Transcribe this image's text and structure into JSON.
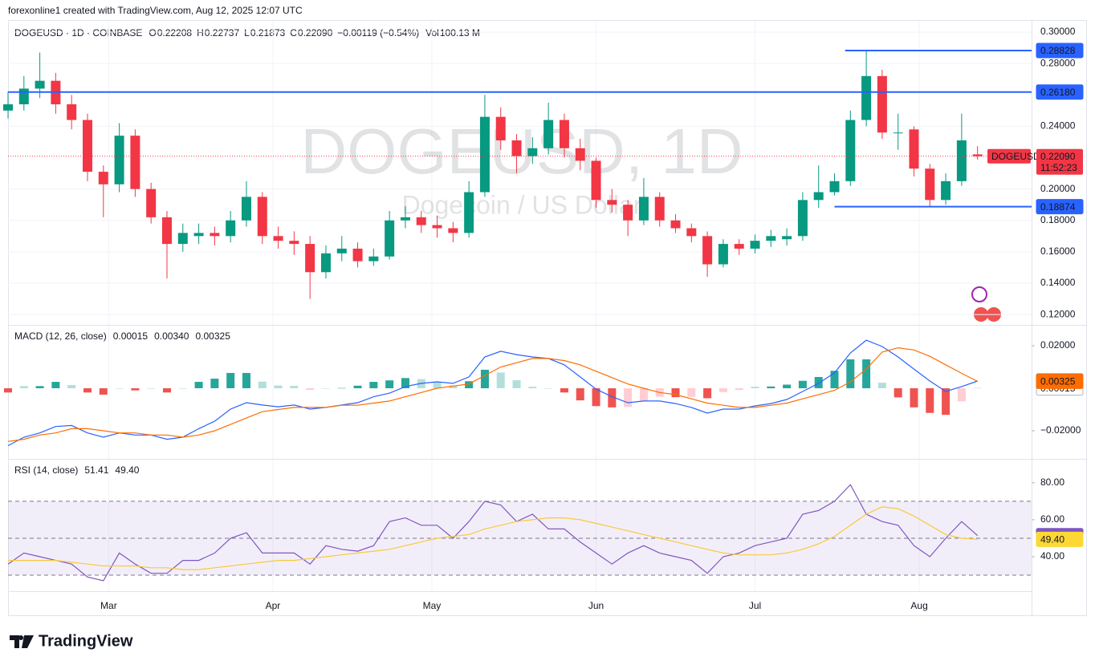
{
  "header": {
    "credit": "forexonline1 created with TradingView.com, Aug 12, 2025 12:07 UTC"
  },
  "legend": {
    "symbol": "DOGEUSD · 1D · COINBASE",
    "items": [
      {
        "label": "O",
        "value": "0.22208"
      },
      {
        "label": "H",
        "value": "0.22737"
      },
      {
        "label": "L",
        "value": "0.21873"
      },
      {
        "label": "C",
        "value": "0.22090"
      }
    ],
    "change": "−0.00119 (−0.54%)",
    "volume_label": "Vol",
    "volume": "100.13 M"
  },
  "watermark": {
    "title": "DOGEUSD, 1D",
    "subtitle": "Dogecoin / US Dollar"
  },
  "footer": {
    "brand": "TradingView"
  },
  "chart_data": [
    {
      "type": "candlestick",
      "up_color": "#089981",
      "down_color": "#f23645",
      "xlim": [
        0,
        193.2
      ],
      "xticks": [
        {
          "value": 19,
          "label": "Mar"
        },
        {
          "value": 50,
          "label": "Apr"
        },
        {
          "value": 80,
          "label": "May"
        },
        {
          "value": 111,
          "label": "Jun"
        },
        {
          "value": 141,
          "label": "Jul"
        },
        {
          "value": 172,
          "label": "Aug"
        }
      ],
      "ylim": [
        0.1134,
        0.3077
      ],
      "yticks": [
        {
          "value": 0.3,
          "label": "0.30000"
        },
        {
          "value": 0.28,
          "label": "0.28000"
        },
        {
          "value": 0.24,
          "label": "0.24000"
        },
        {
          "value": 0.2,
          "label": "0.20000"
        },
        {
          "value": 0.18,
          "label": "0.18000"
        },
        {
          "value": 0.16,
          "label": "0.16000"
        },
        {
          "value": 0.14,
          "label": "0.14000"
        },
        {
          "value": 0.12,
          "label": "0.12000"
        }
      ],
      "grid": true,
      "x": [
        0,
        3,
        6,
        9,
        12,
        15,
        18,
        21,
        24,
        27,
        30,
        33,
        36,
        39,
        42,
        45,
        48,
        51,
        54,
        57,
        60,
        63,
        66,
        69,
        72,
        75,
        78,
        81,
        84,
        87,
        90,
        93,
        96,
        99,
        102,
        105,
        108,
        111,
        114,
        117,
        120,
        123,
        126,
        129,
        132,
        135,
        138,
        141,
        144,
        147,
        150,
        153,
        156,
        159,
        162,
        165,
        168,
        171,
        174,
        177,
        180,
        183
      ],
      "open": [
        0.25,
        0.254,
        0.264,
        0.269,
        0.254,
        0.244,
        0.211,
        0.203,
        0.234,
        0.2,
        0.182,
        0.165,
        0.17,
        0.172,
        0.17,
        0.18,
        0.195,
        0.17,
        0.167,
        0.165,
        0.147,
        0.159,
        0.162,
        0.154,
        0.157,
        0.18,
        0.182,
        0.177,
        0.175,
        0.172,
        0.198,
        0.246,
        0.231,
        0.221,
        0.226,
        0.244,
        0.226,
        0.218,
        0.193,
        0.19,
        0.18,
        0.195,
        0.18,
        0.175,
        0.17,
        0.152,
        0.165,
        0.162,
        0.167,
        0.168,
        0.17,
        0.193,
        0.198,
        0.205,
        0.244,
        0.272,
        0.236,
        0.238,
        0.213,
        0.193,
        0.205,
        0.22208
      ],
      "high": [
        0.262,
        0.272,
        0.287,
        0.274,
        0.26,
        0.248,
        0.215,
        0.242,
        0.238,
        0.204,
        0.186,
        0.178,
        0.178,
        0.176,
        0.186,
        0.205,
        0.198,
        0.176,
        0.173,
        0.17,
        0.164,
        0.17,
        0.166,
        0.162,
        0.186,
        0.189,
        0.186,
        0.183,
        0.179,
        0.205,
        0.26,
        0.252,
        0.235,
        0.233,
        0.255,
        0.248,
        0.232,
        0.22,
        0.2,
        0.193,
        0.207,
        0.198,
        0.184,
        0.178,
        0.173,
        0.168,
        0.168,
        0.171,
        0.174,
        0.175,
        0.198,
        0.215,
        0.21,
        0.25,
        0.2883,
        0.276,
        0.248,
        0.24,
        0.216,
        0.21,
        0.248,
        0.22737
      ],
      "low": [
        0.245,
        0.25,
        0.258,
        0.248,
        0.238,
        0.205,
        0.182,
        0.198,
        0.195,
        0.178,
        0.143,
        0.16,
        0.165,
        0.164,
        0.166,
        0.176,
        0.165,
        0.162,
        0.158,
        0.13,
        0.143,
        0.154,
        0.15,
        0.151,
        0.155,
        0.175,
        0.172,
        0.169,
        0.166,
        0.169,
        0.195,
        0.225,
        0.21,
        0.216,
        0.222,
        0.22,
        0.212,
        0.188,
        0.185,
        0.17,
        0.177,
        0.176,
        0.172,
        0.166,
        0.144,
        0.15,
        0.158,
        0.159,
        0.163,
        0.164,
        0.167,
        0.188,
        0.196,
        0.202,
        0.24,
        0.232,
        0.225,
        0.208,
        0.189,
        0.19,
        0.202,
        0.21873
      ],
      "close": [
        0.254,
        0.264,
        0.269,
        0.254,
        0.244,
        0.211,
        0.203,
        0.234,
        0.2,
        0.182,
        0.165,
        0.172,
        0.172,
        0.17,
        0.18,
        0.195,
        0.17,
        0.167,
        0.165,
        0.147,
        0.159,
        0.162,
        0.154,
        0.157,
        0.18,
        0.182,
        0.177,
        0.175,
        0.172,
        0.198,
        0.246,
        0.231,
        0.221,
        0.226,
        0.244,
        0.226,
        0.218,
        0.193,
        0.19,
        0.18,
        0.195,
        0.18,
        0.175,
        0.17,
        0.152,
        0.165,
        0.162,
        0.167,
        0.17,
        0.17,
        0.193,
        0.198,
        0.205,
        0.244,
        0.272,
        0.236,
        0.236,
        0.213,
        0.193,
        0.205,
        0.231,
        0.2209
      ],
      "levels": [
        {
          "value": 0.28828,
          "label": "0.28828",
          "x_from": 158
        },
        {
          "value": 0.2618,
          "label": "0.26180"
        },
        {
          "value": 0.18874,
          "label": "0.18874",
          "x_from": 156
        }
      ],
      "level_color": "#2962ff",
      "last_price": {
        "value": 0.2209,
        "label": "0.22090",
        "symbol": "DOGEUSD",
        "countdown": "11:52:23",
        "color": "#f23645"
      }
    },
    {
      "type": "line",
      "title": "MACD (12, 26, close)",
      "xlim": [
        0,
        193.2
      ],
      "ylim": [
        -0.0332,
        0.0298
      ],
      "yticks": [
        {
          "value": 0.02,
          "label": "0.02000"
        },
        {
          "value": -0.02,
          "label": "−0.02000"
        }
      ],
      "x": [
        0,
        3,
        6,
        9,
        12,
        15,
        18,
        21,
        24,
        27,
        30,
        33,
        36,
        39,
        42,
        45,
        48,
        51,
        54,
        57,
        60,
        63,
        66,
        69,
        72,
        75,
        78,
        81,
        84,
        87,
        90,
        93,
        96,
        99,
        102,
        105,
        108,
        111,
        114,
        117,
        120,
        123,
        126,
        129,
        132,
        135,
        138,
        141,
        144,
        147,
        150,
        153,
        156,
        159,
        162,
        165,
        168,
        171,
        174,
        177,
        180,
        183
      ],
      "series": [
        {
          "style": "histogram",
          "color": "#26a69a",
          "down_color": "#ef5350",
          "last_label": "0.00015",
          "label_fill": "#ffffff",
          "label_text": "#131722",
          "values": [
            -0.002,
            0.001,
            0.001,
            0.003,
            0.0015,
            -0.002,
            -0.003,
            0,
            -0.001,
            0,
            -0.002,
            0,
            0.003,
            0.0045,
            0.0072,
            0.0072,
            0.0031,
            0.0013,
            0.0011,
            -0.0008,
            0,
            0.0001,
            0.0012,
            0.003,
            0.0037,
            0.0048,
            0.0043,
            0.003,
            0.0013,
            0.0033,
            0.0087,
            0.0074,
            0.0038,
            0.0007,
            0,
            -0.002,
            -0.0057,
            -0.0084,
            -0.009,
            -0.0088,
            -0.006,
            -0.004,
            -0.0042,
            -0.004,
            -0.0047,
            -0.0018,
            -0.0008,
            0.0007,
            0.0008,
            0.0017,
            0.0035,
            0.0053,
            0.0082,
            0.0136,
            0.0136,
            0.0026,
            -0.0043,
            -0.009,
            -0.0116,
            -0.0125,
            -0.0062,
            0.00015
          ]
        },
        {
          "style": "line",
          "color": "#2962ff",
          "last_label": "0.00340",
          "label_fill": "#2962ff",
          "label_text": "#ffffff",
          "values": [
            -0.027,
            -0.023,
            -0.021,
            -0.018,
            -0.0175,
            -0.021,
            -0.023,
            -0.021,
            -0.022,
            -0.022,
            -0.024,
            -0.023,
            -0.019,
            -0.0155,
            -0.0098,
            -0.0068,
            -0.0079,
            -0.0087,
            -0.0079,
            -0.0098,
            -0.009,
            -0.0079,
            -0.0068,
            -0.004,
            -0.0023,
            0.0008,
            0.0023,
            0.003,
            0.0023,
            0.0053,
            0.0147,
            0.0174,
            0.0158,
            0.0147,
            0.014,
            0.011,
            0.0053,
            -0.0004,
            -0.004,
            -0.0068,
            -0.006,
            -0.006,
            -0.0072,
            -0.009,
            -0.0117,
            -0.0098,
            -0.0098,
            -0.0083,
            -0.0072,
            -0.0053,
            -0.0015,
            0.0023,
            0.0072,
            0.0166,
            0.0226,
            0.0196,
            0.0147,
            0.009,
            0.0034,
            -0.0015,
            0.0008,
            0.0034
          ]
        },
        {
          "style": "line",
          "color": "#ff6d00",
          "last_label": "0.00325",
          "label_fill": "#ff6d00",
          "label_text": "#ffffff",
          "values": [
            -0.025,
            -0.024,
            -0.022,
            -0.021,
            -0.019,
            -0.019,
            -0.02,
            -0.021,
            -0.021,
            -0.022,
            -0.022,
            -0.023,
            -0.022,
            -0.02,
            -0.017,
            -0.014,
            -0.011,
            -0.01,
            -0.009,
            -0.009,
            -0.009,
            -0.008,
            -0.008,
            -0.007,
            -0.006,
            -0.004,
            -0.002,
            0,
            0.001,
            0.002,
            0.006,
            0.01,
            0.012,
            0.014,
            0.014,
            0.013,
            0.011,
            0.008,
            0.005,
            0.002,
            0,
            -0.002,
            -0.003,
            -0.005,
            -0.007,
            -0.008,
            -0.009,
            -0.009,
            -0.008,
            -0.007,
            -0.005,
            -0.003,
            -0.001,
            0.003,
            0.009,
            0.017,
            0.019,
            0.018,
            0.015,
            0.011,
            0.007,
            0.00325
          ]
        }
      ]
    },
    {
      "type": "line",
      "title": "RSI (14, close)",
      "xlim": [
        0,
        193.2
      ],
      "ylim": [
        21.3,
        93
      ],
      "yticks": [
        {
          "value": 80,
          "label": "80.00"
        },
        {
          "value": 60,
          "label": "60.00"
        },
        {
          "value": 40,
          "label": "40.00"
        }
      ],
      "bands": [
        70,
        50,
        30
      ],
      "band_color": "#7e57c2",
      "x": [
        0,
        3,
        6,
        9,
        12,
        15,
        18,
        21,
        24,
        27,
        30,
        33,
        36,
        39,
        42,
        45,
        48,
        51,
        54,
        57,
        60,
        63,
        66,
        69,
        72,
        75,
        78,
        81,
        84,
        87,
        90,
        93,
        96,
        99,
        102,
        105,
        108,
        111,
        114,
        117,
        120,
        123,
        126,
        129,
        132,
        135,
        138,
        141,
        144,
        147,
        150,
        153,
        156,
        159,
        162,
        165,
        168,
        171,
        174,
        177,
        180,
        183
      ],
      "series": [
        {
          "style": "line",
          "color": "#7e57c2",
          "last_label": "51.41",
          "label_fill": "#7e57c2",
          "label_text": "#ffffff",
          "values": [
            36,
            42,
            40,
            38,
            36,
            29,
            27,
            42,
            36,
            31,
            31,
            38,
            38,
            42,
            50,
            53,
            42,
            42,
            42,
            36,
            46,
            44,
            43,
            46,
            59,
            61,
            57,
            57,
            50,
            59,
            70,
            68,
            59,
            63,
            55,
            55,
            48,
            42,
            36,
            42,
            46,
            42,
            40,
            38,
            31,
            40,
            42,
            46,
            48,
            50,
            63,
            65,
            70,
            79,
            63,
            59,
            57,
            46,
            40,
            50,
            59,
            51.41
          ]
        },
        {
          "style": "line",
          "color": "#f9c93b",
          "last_label": "49.40",
          "label_fill": "#fdd835",
          "label_text": "#131722",
          "values": [
            38,
            38,
            38,
            38,
            37,
            36,
            35,
            35,
            35,
            34,
            34,
            33,
            33,
            34,
            35,
            36,
            37,
            38,
            38,
            39,
            40,
            41,
            42,
            43,
            44,
            46,
            48,
            50,
            51,
            52,
            55,
            57,
            59,
            60,
            61,
            61,
            60,
            58,
            56,
            54,
            52,
            50,
            48,
            46,
            44,
            42,
            41,
            41,
            41,
            42,
            44,
            47,
            51,
            57,
            63,
            67,
            66,
            62,
            57,
            52,
            50,
            49.4
          ]
        }
      ]
    }
  ]
}
